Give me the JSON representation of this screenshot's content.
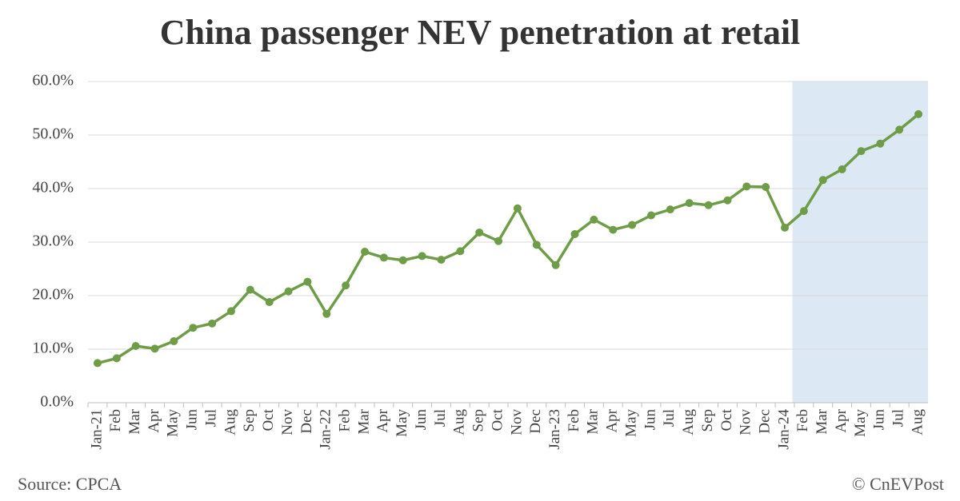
{
  "chart_data": {
    "type": "line",
    "title": "China passenger NEV penetration at retail",
    "categories": [
      "Jan-21",
      "Feb",
      "Mar",
      "Apr",
      "May",
      "Jun",
      "Jul",
      "Aug",
      "Sep",
      "Oct",
      "Nov",
      "Dec",
      "Jan-22",
      "Feb",
      "Mar",
      "Apr",
      "May",
      "Jun",
      "Jul",
      "Aug",
      "Sep",
      "Oct",
      "Nov",
      "Dec",
      "Jan-23",
      "Feb",
      "Mar",
      "Apr",
      "May",
      "Jun",
      "Jul",
      "Aug",
      "Sep",
      "Oct",
      "Nov",
      "Dec",
      "Jan-24",
      "Feb",
      "Mar",
      "Apr",
      "May",
      "Jun",
      "Jul",
      "Aug"
    ],
    "values": [
      7.4,
      8.3,
      10.6,
      10.1,
      11.5,
      14.0,
      14.8,
      17.1,
      21.1,
      18.8,
      20.8,
      22.6,
      16.6,
      21.9,
      28.2,
      27.1,
      26.6,
      27.4,
      26.7,
      28.3,
      31.8,
      30.2,
      36.3,
      29.5,
      25.7,
      31.5,
      34.2,
      32.3,
      33.2,
      35.0,
      36.1,
      37.3,
      36.9,
      37.8,
      40.4,
      40.3,
      32.7,
      35.8,
      41.6,
      43.6,
      47.0,
      48.4,
      51.0,
      53.9
    ],
    "color": "#6f9d47",
    "highlight": [
      "Jan-24",
      "Aug-24"
    ],
    "highlight_color": "#dce8f4",
    "ylim": [
      0,
      60
    ],
    "yticks": [
      {
        "value": 0,
        "label": "0.0%"
      },
      {
        "value": 10,
        "label": "10.0%"
      },
      {
        "value": 20,
        "label": "20.0%"
      },
      {
        "value": 30,
        "label": "30.0%"
      },
      {
        "value": 40,
        "label": "40.0%"
      },
      {
        "value": 50,
        "label": "50.0%"
      },
      {
        "value": 60,
        "label": "60.0%"
      }
    ],
    "grid": true,
    "source": "Source: CPCA",
    "credit": "© CnEVPost"
  }
}
